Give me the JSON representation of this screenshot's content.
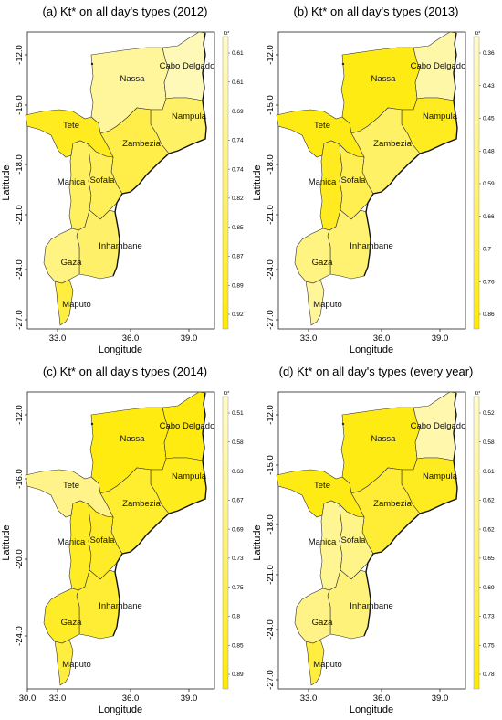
{
  "figure": {
    "panels": [
      {
        "id": "a",
        "title": "(a) Kt* on all day's types (2012)",
        "xlabel": "Longitude",
        "ylabel": "Latitude",
        "xticks": [
          "33.0",
          "36.0",
          "39.0"
        ],
        "yticks": [
          "-12.0",
          "-15.0",
          "-18.0",
          "-21.0",
          "-24.0",
          "-27.0"
        ],
        "legend_title": "Kt*",
        "legend_ticks": [
          "0.61",
          "0.61",
          "0.69",
          "0.74",
          "0.74",
          "0.82",
          "0.85",
          "0.87",
          "0.89",
          "0.92"
        ],
        "provinces": {
          "Niassa": {
            "label": "Nassa",
            "color": "#FFF59A"
          },
          "Cabo Delgado": {
            "label": "Cabo Delgado",
            "color": "#FFF9B8"
          },
          "Nampula": {
            "label": "Nampula",
            "color": "#FFF166"
          },
          "Zambezia": {
            "label": "Zambezia",
            "color": "#FFEE4A"
          },
          "Tete": {
            "label": "Tete",
            "color": "#FFEB1F"
          },
          "Manica": {
            "label": "Manica",
            "color": "#FFF060"
          },
          "Sofala": {
            "label": "Sofala",
            "color": "#FFF05A"
          },
          "Inhambane": {
            "label": "Inhambane",
            "color": "#FFF06A"
          },
          "Gaza": {
            "label": "Gaza",
            "color": "#FFF382"
          },
          "Maputo": {
            "label": "Maputo",
            "color": "#FFEE40"
          }
        }
      },
      {
        "id": "b",
        "title": "(b) Kt* on all day's types (2013)",
        "xlabel": "Longitude",
        "ylabel": "Latitude",
        "xticks": [
          "33.0",
          "36.0",
          "39.0"
        ],
        "yticks": [
          "-12.0",
          "-15.0",
          "-18.0",
          "-21.0",
          "-24.0",
          "-27.0"
        ],
        "legend_title": "Kt*",
        "legend_ticks": [
          "0.36",
          "0.43",
          "0.45",
          "0.48",
          "0.59",
          "0.66",
          "0.7",
          "0.76",
          "0.86"
        ],
        "provinces": {
          "Niassa": {
            "label": "Nassa",
            "color": "#FFEB14"
          },
          "Cabo Delgado": {
            "label": "Cabo Delgado",
            "color": "#FFF7A8"
          },
          "Nampula": {
            "label": "Nampula",
            "color": "#FFEC20"
          },
          "Zambezia": {
            "label": "Zambezia",
            "color": "#FFF166"
          },
          "Tete": {
            "label": "Tete",
            "color": "#FFEB14"
          },
          "Manica": {
            "label": "Manica",
            "color": "#FFEB1F"
          },
          "Sofala": {
            "label": "Sofala",
            "color": "#FFEF50"
          },
          "Inhambane": {
            "label": "Inhambane",
            "color": "#FFF270"
          },
          "Gaza": {
            "label": "Gaza",
            "color": "#FFF382"
          },
          "Maputo": {
            "label": "Maputo",
            "color": "#FFF59A"
          }
        }
      },
      {
        "id": "c",
        "title": "(c) Kt* on all day's types (2014)",
        "xlabel": "Longitude",
        "ylabel": "Latitude",
        "xticks": [
          "30.0",
          "33.0",
          "36.0",
          "39.0"
        ],
        "yticks": [
          "-12.0",
          "-16.0",
          "-20.0",
          "-24.0"
        ],
        "legend_title": "Kt*",
        "legend_ticks": [
          "0.51",
          "0.58",
          "0.63",
          "0.67",
          "0.69",
          "0.73",
          "0.75",
          "0.8",
          "0.85",
          "0.89"
        ],
        "provinces": {
          "Niassa": {
            "label": "Nassa",
            "color": "#FFEB10"
          },
          "Cabo Delgado": {
            "label": "Cabo Delgado",
            "color": "#FFEB10"
          },
          "Nampula": {
            "label": "Nampula",
            "color": "#FFEC1C"
          },
          "Zambezia": {
            "label": "Zambezia",
            "color": "#FFED30"
          },
          "Tete": {
            "label": "Tete",
            "color": "#FFF38A"
          },
          "Manica": {
            "label": "Manica",
            "color": "#FFEC25"
          },
          "Sofala": {
            "label": "Sofala",
            "color": "#FFEC28"
          },
          "Inhambane": {
            "label": "Inhambane",
            "color": "#FFED35"
          },
          "Gaza": {
            "label": "Gaza",
            "color": "#FFEC28"
          },
          "Maputo": {
            "label": "Maputo",
            "color": "#FFEE40"
          }
        }
      },
      {
        "id": "d",
        "title": "(d) Kt* on all day's types (every year)",
        "xlabel": "Longitude",
        "ylabel": "Latitude",
        "xticks": [
          "33.0",
          "36.0",
          "39.0"
        ],
        "yticks": [
          "-12.0",
          "-15.0",
          "-18.0",
          "-21.0",
          "-24.0",
          "-27.0"
        ],
        "legend_title": "Kt*",
        "legend_ticks": [
          "0.52",
          "0.58",
          "0.61",
          "0.62",
          "0.62",
          "0.65",
          "0.69",
          "0.73",
          "0.75",
          "0.78"
        ],
        "provinces": {
          "Niassa": {
            "label": "Nassa",
            "color": "#FFEB14"
          },
          "Cabo Delgado": {
            "label": "Cabo Delgado",
            "color": "#FFF7AC"
          },
          "Nampula": {
            "label": "Nampula",
            "color": "#FFEC20"
          },
          "Zambezia": {
            "label": "Zambezia",
            "color": "#FFED35"
          },
          "Tete": {
            "label": "Tete",
            "color": "#FFEB14"
          },
          "Manica": {
            "label": "Manica",
            "color": "#FFF592"
          },
          "Sofala": {
            "label": "Sofala",
            "color": "#FFF488"
          },
          "Inhambane": {
            "label": "Inhambane",
            "color": "#FFF27A"
          },
          "Gaza": {
            "label": "Gaza",
            "color": "#FFF388"
          },
          "Maputo": {
            "label": "Maputo",
            "color": "#FFEE40"
          }
        }
      }
    ]
  }
}
